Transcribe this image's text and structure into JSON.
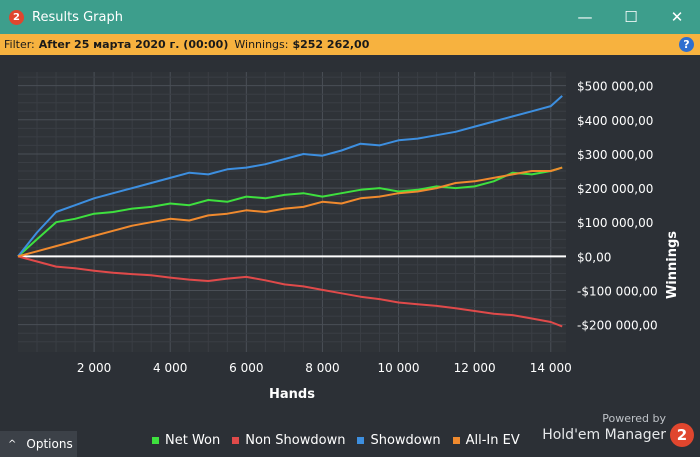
{
  "window": {
    "title": "Results Graph",
    "logo_text": "2",
    "minimize_glyph": "—",
    "maximize_glyph": "☐",
    "close_glyph": "✕"
  },
  "filter": {
    "filter_label": "Filter:",
    "filter_value": "After 25 марта 2020 г. (00:00)",
    "winnings_label": "Winnings:",
    "winnings_value": "$252 262,00",
    "help_glyph": "?"
  },
  "bottom": {
    "options_caret": "^",
    "options_label": "Options",
    "powered_by": "Powered by",
    "brand": "Hold'em Manager",
    "brand_logo_text": "2"
  },
  "icons": [
    "app-logo-icon",
    "minimize-icon",
    "maximize-icon",
    "close-icon",
    "help-icon",
    "caret-up-icon",
    "brand-logo-icon"
  ],
  "colors": {
    "titlebar": "#3d9e8c",
    "filterbar": "#f7b23f",
    "plot_bg": "#2f3338",
    "net_won": "#3ee03e",
    "non_showdown": "#e04a4a",
    "showdown": "#3d8fe0",
    "all_in_ev": "#f08a2e"
  },
  "chart_data": {
    "type": "line",
    "xlabel": "Hands",
    "ylabel": "Winnings",
    "xlim": [
      0,
      14400
    ],
    "ylim": [
      -280000,
      540000
    ],
    "x_ticks": [
      2000,
      4000,
      6000,
      8000,
      10000,
      12000,
      14000
    ],
    "x_tick_labels": [
      "2 000",
      "4 000",
      "6 000",
      "8 000",
      "10 000",
      "12 000",
      "14 000"
    ],
    "y_ticks": [
      500000,
      400000,
      300000,
      200000,
      100000,
      0,
      -100000,
      -200000
    ],
    "y_tick_labels": [
      "$500 000,00",
      "$400 000,00",
      "$300 000,00",
      "$200 000,00",
      "$100 000,00",
      "$0,00",
      "-$100 000,00",
      "-$200 000,00"
    ],
    "grid": true,
    "legend_position": "bottom",
    "x": [
      0,
      500,
      1000,
      1500,
      2000,
      2500,
      3000,
      3500,
      4000,
      4500,
      5000,
      5500,
      6000,
      6500,
      7000,
      7500,
      8000,
      8500,
      9000,
      9500,
      10000,
      10500,
      11000,
      11500,
      12000,
      12500,
      13000,
      13500,
      14000,
      14300
    ],
    "series": [
      {
        "name": "Net Won",
        "color": "#3ee03e",
        "values": [
          0,
          50000,
          100000,
          110000,
          125000,
          130000,
          140000,
          145000,
          155000,
          150000,
          165000,
          160000,
          175000,
          170000,
          180000,
          185000,
          175000,
          185000,
          195000,
          200000,
          190000,
          195000,
          205000,
          200000,
          205000,
          220000,
          245000,
          240000,
          250000,
          260000
        ]
      },
      {
        "name": "Non Showdown",
        "color": "#e04a4a",
        "values": [
          0,
          -15000,
          -30000,
          -35000,
          -42000,
          -48000,
          -52000,
          -55000,
          -62000,
          -68000,
          -72000,
          -65000,
          -60000,
          -70000,
          -82000,
          -88000,
          -98000,
          -108000,
          -118000,
          -125000,
          -135000,
          -140000,
          -145000,
          -152000,
          -160000,
          -168000,
          -172000,
          -182000,
          -192000,
          -205000
        ]
      },
      {
        "name": "Showdown",
        "color": "#3d8fe0",
        "values": [
          0,
          70000,
          130000,
          150000,
          170000,
          185000,
          200000,
          215000,
          230000,
          245000,
          240000,
          255000,
          260000,
          270000,
          285000,
          300000,
          295000,
          310000,
          330000,
          325000,
          340000,
          345000,
          355000,
          365000,
          380000,
          395000,
          410000,
          425000,
          440000,
          470000
        ]
      },
      {
        "name": "All-In EV",
        "color": "#f08a2e",
        "values": [
          0,
          15000,
          30000,
          45000,
          60000,
          75000,
          90000,
          100000,
          110000,
          105000,
          120000,
          125000,
          135000,
          130000,
          140000,
          145000,
          160000,
          155000,
          170000,
          175000,
          185000,
          190000,
          200000,
          215000,
          220000,
          230000,
          240000,
          250000,
          250000,
          260000
        ]
      }
    ]
  }
}
